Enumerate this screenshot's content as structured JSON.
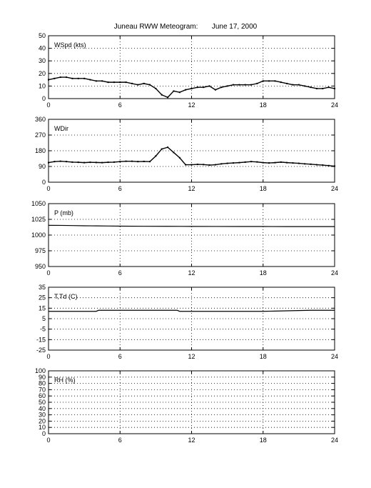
{
  "title": "Juneau RWW Meteogram:       June 17, 2000",
  "x_ticks": [
    "0",
    "6",
    "12",
    "18",
    "24"
  ],
  "chart_data": [
    {
      "type": "scatter",
      "label": "WSpd (kts)",
      "xlim": [
        0,
        24
      ],
      "ylim": [
        0,
        50
      ],
      "yticks": [
        "0",
        "10",
        "20",
        "30",
        "40",
        "50"
      ],
      "grid": true,
      "series": [
        {
          "x": [
            0,
            0.5,
            1,
            1.5,
            2,
            2.5,
            3,
            3.5,
            4,
            4.5,
            5,
            5.5,
            6,
            6.5,
            7,
            7.5,
            8,
            8.5,
            9,
            9.5,
            10,
            10.5,
            11,
            11.5,
            12,
            12.5,
            13,
            13.5,
            14,
            14.5,
            15,
            15.5,
            16,
            16.5,
            17,
            17.5,
            18,
            18.5,
            19,
            19.5,
            20,
            20.5,
            21,
            21.5,
            22,
            22.5,
            23,
            23.5,
            24
          ],
          "y": [
            15,
            16,
            17,
            17,
            16,
            16,
            16,
            15,
            14,
            14,
            13,
            13,
            13,
            13,
            12,
            11,
            12,
            11,
            8,
            3,
            1,
            6,
            5,
            7,
            8,
            9,
            9,
            10,
            7,
            9,
            10,
            11,
            11,
            11,
            11,
            12,
            14,
            14,
            14,
            13,
            12,
            11,
            11,
            10,
            9,
            8,
            8,
            9,
            8
          ]
        }
      ]
    },
    {
      "type": "scatter",
      "label": "WDir",
      "xlim": [
        0,
        24
      ],
      "ylim": [
        0,
        360
      ],
      "yticks": [
        "0",
        "90",
        "180",
        "270",
        "360"
      ],
      "grid": true,
      "series": [
        {
          "x": [
            0,
            0.5,
            1,
            1.5,
            2,
            2.5,
            3,
            3.5,
            4,
            4.5,
            5,
            5.5,
            6,
            6.5,
            7,
            7.5,
            8,
            8.5,
            9,
            9.5,
            10,
            10.5,
            11,
            11.5,
            12,
            12.5,
            13,
            13.5,
            14,
            14.5,
            15,
            15.5,
            16,
            16.5,
            17,
            17.5,
            18,
            18.5,
            19,
            19.5,
            20,
            20.5,
            21,
            21.5,
            22,
            22.5,
            23,
            23.5,
            24
          ],
          "y": [
            112,
            118,
            120,
            118,
            115,
            114,
            112,
            114,
            113,
            112,
            114,
            115,
            118,
            120,
            120,
            118,
            119,
            118,
            150,
            190,
            200,
            170,
            140,
            100,
            100,
            102,
            101,
            98,
            100,
            105,
            108,
            110,
            112,
            115,
            118,
            116,
            112,
            110,
            112,
            115,
            112,
            110,
            108,
            105,
            103,
            100,
            98,
            95,
            92
          ]
        }
      ]
    },
    {
      "type": "line",
      "label": "P (mb)",
      "xlim": [
        0,
        24
      ],
      "ylim": [
        950,
        1050
      ],
      "yticks": [
        "950",
        "975",
        "1000",
        "1025",
        "1050"
      ],
      "grid": true,
      "series": [
        {
          "x": [
            0,
            1,
            2,
            3,
            4,
            5,
            6,
            8,
            10,
            12,
            14,
            16,
            18,
            20,
            22,
            24
          ],
          "y": [
            1015.5,
            1015.4,
            1015.1,
            1014.8,
            1014.6,
            1014.4,
            1014.2,
            1014.0,
            1013.9,
            1013.8,
            1013.7,
            1013.6,
            1013.6,
            1013.5,
            1013.5,
            1013.5
          ]
        }
      ]
    },
    {
      "type": "line",
      "label": "T,Td (C)",
      "xlim": [
        0,
        24
      ],
      "ylim": [
        -25,
        35
      ],
      "yticks": [
        "-25",
        "-15",
        "-5",
        "5",
        "15",
        "25",
        "35"
      ],
      "grid": true,
      "series": [
        {
          "x": [
            0,
            4,
            4.2,
            8,
            10.8,
            11,
            14,
            18,
            20,
            22,
            24
          ],
          "y": [
            12,
            12,
            13,
            13,
            13,
            12,
            12,
            12,
            12.5,
            13,
            13
          ]
        }
      ]
    },
    {
      "type": "line",
      "label": "RH (%)",
      "xlim": [
        0,
        24
      ],
      "ylim": [
        0,
        100
      ],
      "yticks": [
        "0",
        "10",
        "20",
        "30",
        "40",
        "50",
        "60",
        "70",
        "80",
        "90",
        "100"
      ],
      "grid": true,
      "series": []
    }
  ]
}
